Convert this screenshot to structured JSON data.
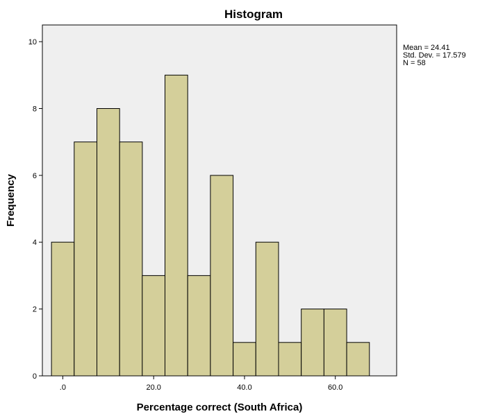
{
  "chart_data": {
    "type": "bar",
    "title": "Histogram",
    "xlabel": "Percentage correct (South Africa)",
    "ylabel": "Frequency",
    "xlim": [
      -4.5,
      73.5
    ],
    "ylim": [
      0,
      10.5
    ],
    "bin_width": 5,
    "bins": [
      {
        "start": -2.5,
        "end": 2.5,
        "count": 4
      },
      {
        "start": 2.5,
        "end": 7.5,
        "count": 7
      },
      {
        "start": 7.5,
        "end": 12.5,
        "count": 8
      },
      {
        "start": 12.5,
        "end": 17.5,
        "count": 7
      },
      {
        "start": 17.5,
        "end": 22.5,
        "count": 3
      },
      {
        "start": 22.5,
        "end": 27.5,
        "count": 9
      },
      {
        "start": 27.5,
        "end": 32.5,
        "count": 3
      },
      {
        "start": 32.5,
        "end": 37.5,
        "count": 6
      },
      {
        "start": 37.5,
        "end": 42.5,
        "count": 1
      },
      {
        "start": 42.5,
        "end": 47.5,
        "count": 4
      },
      {
        "start": 47.5,
        "end": 52.5,
        "count": 1
      },
      {
        "start": 52.5,
        "end": 57.5,
        "count": 2
      },
      {
        "start": 57.5,
        "end": 62.5,
        "count": 2
      },
      {
        "start": 62.5,
        "end": 67.5,
        "count": 1
      }
    ],
    "x_ticks": [
      {
        "value": 0,
        "label": ".0"
      },
      {
        "value": 20,
        "label": "20.0"
      },
      {
        "value": 40,
        "label": "40.0"
      },
      {
        "value": 60,
        "label": "60.0"
      }
    ],
    "y_ticks": [
      {
        "value": 0,
        "label": "0"
      },
      {
        "value": 2,
        "label": "2"
      },
      {
        "value": 4,
        "label": "4"
      },
      {
        "value": 6,
        "label": "6"
      },
      {
        "value": 8,
        "label": "8"
      },
      {
        "value": 10,
        "label": "10"
      }
    ],
    "stats": [
      "Mean = 24.41",
      "Std. Dev. = 17.579",
      "N = 58"
    ],
    "grid": false,
    "legend": "none",
    "colors": {
      "bar_fill": "#d4cf9a",
      "bar_stroke": "#000000",
      "plot_background": "#efefef",
      "frame": "#000000"
    }
  }
}
